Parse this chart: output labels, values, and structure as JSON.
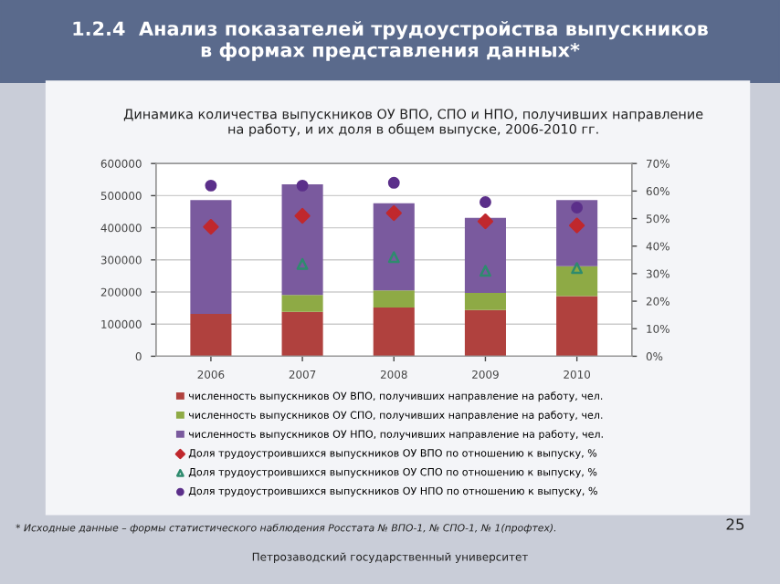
{
  "chart_data": {
    "type": "bar",
    "stacked": true,
    "title": "1.2.4  Анализ показателей трудоустройства выпускников\nв формах представления данных*",
    "subtitle": "Динамика количества выпускников ОУ ВПО, СПО и НПО, получивших направление\nна работу, и их доля в общем выпуске, 2006-2010 гг.",
    "categories": [
      "2006",
      "2007",
      "2008",
      "2009",
      "2010"
    ],
    "series": [
      {
        "name": "численность выпускников ОУ ВПО, получивших направление на работу, чел.",
        "color": "#b0413e",
        "values": [
          132000,
          138000,
          152000,
          144000,
          187000
        ]
      },
      {
        "name": "численность выпускников ОУ СПО, получивших направление на работу, чел.",
        "color": "#8eaa45",
        "values": [
          0,
          53000,
          53000,
          53000,
          93000
        ]
      },
      {
        "name": "численность выпускников ОУ НПО, получивших направление на работу, чел.",
        "color": "#7a5a9e",
        "values": [
          354000,
          344000,
          271000,
          234000,
          206000
        ]
      },
      {
        "name": "Доля трудоустроившихся выпускников ОУ ВПО по отношению к выпуску, %",
        "type": "scatter",
        "axis": "y2",
        "marker": "diamond",
        "color": "#c0282d",
        "values": [
          47,
          51,
          52,
          49,
          47.5
        ]
      },
      {
        "name": "Доля трудоустроившихся выпускников ОУ СПО по отношению к выпуску, %",
        "type": "scatter",
        "axis": "y2",
        "marker": "triangle",
        "color": "#2e8b6e",
        "values": [
          null,
          33.5,
          36,
          31,
          32
        ]
      },
      {
        "name": "Доля трудоустроившихся выпускников ОУ НПО по отношению к выпуску, %",
        "type": "scatter",
        "axis": "y2",
        "marker": "circle",
        "color": "#5b2f8a",
        "values": [
          62,
          62,
          63,
          56,
          54
        ]
      }
    ],
    "ylim": [
      0,
      600000
    ],
    "yticks": [
      0,
      100000,
      200000,
      300000,
      400000,
      500000,
      600000
    ],
    "y2lim": [
      0,
      70
    ],
    "y2ticks": [
      {
        "value": 0,
        "label": "0%"
      },
      {
        "value": 10,
        "label": "10%"
      },
      {
        "value": 20,
        "label": "20%"
      },
      {
        "value": 30,
        "label": "30%"
      },
      {
        "value": 40,
        "label": "40%"
      },
      {
        "value": 50,
        "label": "50%"
      },
      {
        "value": 60,
        "label": "60%"
      },
      {
        "value": 70,
        "label": "70%"
      }
    ],
    "grid": "y",
    "legend": "bottom",
    "annotations": [
      "* Исходные данные – формы статистического наблюдения Росстата № ВПО-1, № СПО-1, № 1(профтех).",
      "Петрозаводский государственный университет",
      "25"
    ]
  }
}
